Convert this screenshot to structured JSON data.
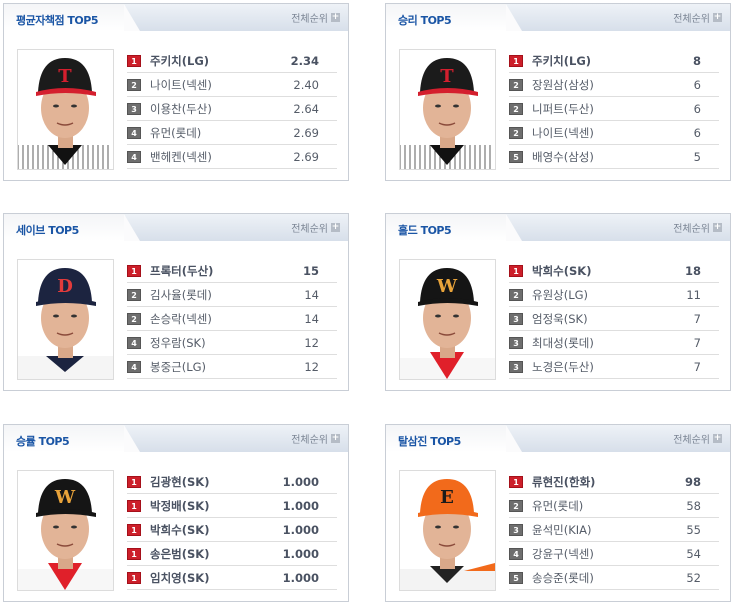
{
  "more_label": "전체순위",
  "colors": {
    "title": "#1a55a5",
    "rank_first": "#cc1f2a",
    "rank_other": "#6e6e6e"
  },
  "panels": [
    {
      "title": "평균자책점 TOP5",
      "photo": {
        "cap": "#1b1b1b",
        "brim": "#d41f2e",
        "logo": "T",
        "logo_color": "#d41f2e",
        "jersey": "pinstripe"
      },
      "rows": [
        {
          "rank": "1",
          "name": "주키치(LG)",
          "value": "2.34"
        },
        {
          "rank": "2",
          "name": "나이트(넥센)",
          "value": "2.40"
        },
        {
          "rank": "3",
          "name": "이용찬(두산)",
          "value": "2.64"
        },
        {
          "rank": "4",
          "name": "유먼(롯데)",
          "value": "2.69"
        },
        {
          "rank": "4",
          "name": "밴헤켄(넥센)",
          "value": "2.69"
        }
      ]
    },
    {
      "title": "승리 TOP5",
      "photo": {
        "cap": "#1b1b1b",
        "brim": "#d41f2e",
        "logo": "T",
        "logo_color": "#d41f2e",
        "jersey": "pinstripe"
      },
      "rows": [
        {
          "rank": "1",
          "name": "주키치(LG)",
          "value": "8"
        },
        {
          "rank": "2",
          "name": "장원삼(삼성)",
          "value": "6"
        },
        {
          "rank": "2",
          "name": "니퍼트(두산)",
          "value": "6"
        },
        {
          "rank": "2",
          "name": "나이트(넥센)",
          "value": "6"
        },
        {
          "rank": "5",
          "name": "배영수(삼성)",
          "value": "5"
        }
      ]
    },
    {
      "title": "세이브 TOP5",
      "photo": {
        "cap": "#1c2440",
        "brim": "#1c2440",
        "logo": "D",
        "logo_color": "#e23b3b",
        "jersey": "white"
      },
      "rows": [
        {
          "rank": "1",
          "name": "프록터(두산)",
          "value": "15"
        },
        {
          "rank": "2",
          "name": "김사율(롯데)",
          "value": "14"
        },
        {
          "rank": "2",
          "name": "손승락(넥센)",
          "value": "14"
        },
        {
          "rank": "4",
          "name": "정우람(SK)",
          "value": "12"
        },
        {
          "rank": "4",
          "name": "봉중근(LG)",
          "value": "12"
        }
      ]
    },
    {
      "title": "홀드 TOP5",
      "photo": {
        "cap": "#151515",
        "brim": "#151515",
        "logo": "W",
        "logo_color": "#e8a33a",
        "jersey": "red"
      },
      "rows": [
        {
          "rank": "1",
          "name": "박희수(SK)",
          "value": "18"
        },
        {
          "rank": "2",
          "name": "유원상(LG)",
          "value": "11"
        },
        {
          "rank": "3",
          "name": "엄정욱(SK)",
          "value": "7"
        },
        {
          "rank": "3",
          "name": "최대성(롯데)",
          "value": "7"
        },
        {
          "rank": "3",
          "name": "노경은(두산)",
          "value": "7"
        }
      ]
    },
    {
      "title": "승률 TOP5",
      "photo": {
        "cap": "#151515",
        "brim": "#151515",
        "logo": "W",
        "logo_color": "#e8a33a",
        "jersey": "red"
      },
      "rows": [
        {
          "rank": "1",
          "name": "김광현(SK)",
          "value": "1.000"
        },
        {
          "rank": "1",
          "name": "박정배(SK)",
          "value": "1.000"
        },
        {
          "rank": "1",
          "name": "박희수(SK)",
          "value": "1.000"
        },
        {
          "rank": "1",
          "name": "송은범(SK)",
          "value": "1.000"
        },
        {
          "rank": "1",
          "name": "임치영(SK)",
          "value": "1.000"
        }
      ]
    },
    {
      "title": "탈삼진 TOP5",
      "photo": {
        "cap": "#f26a1b",
        "brim": "#f26a1b",
        "logo": "E",
        "logo_color": "#1b1b1b",
        "jersey": "orange"
      },
      "rows": [
        {
          "rank": "1",
          "name": "류현진(한화)",
          "value": "98"
        },
        {
          "rank": "2",
          "name": "유먼(롯데)",
          "value": "58"
        },
        {
          "rank": "3",
          "name": "윤석민(KIA)",
          "value": "55"
        },
        {
          "rank": "4",
          "name": "강윤구(넥센)",
          "value": "54"
        },
        {
          "rank": "5",
          "name": "송승준(롯데)",
          "value": "52"
        }
      ]
    }
  ]
}
